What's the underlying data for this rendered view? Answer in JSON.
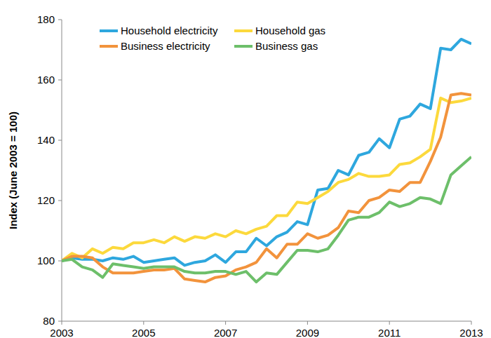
{
  "chart_data": {
    "type": "line",
    "y_label": "Index (June 2003 = 100)",
    "x": [
      2003,
      2003.25,
      2003.5,
      2003.75,
      2004,
      2004.25,
      2004.5,
      2004.75,
      2005,
      2005.25,
      2005.5,
      2005.75,
      2006,
      2006.25,
      2006.5,
      2006.75,
      2007,
      2007.25,
      2007.5,
      2007.75,
      2008,
      2008.25,
      2008.5,
      2008.75,
      2009,
      2009.25,
      2009.5,
      2009.75,
      2010,
      2010.25,
      2010.5,
      2010.75,
      2011,
      2011.25,
      2011.5,
      2011.75,
      2012,
      2012.25,
      2012.5,
      2012.75,
      2013
    ],
    "series": [
      {
        "name": "Household electricity",
        "color": "#2ea7de",
        "values": [
          100,
          101,
          100.5,
          100.5,
          100,
          101,
          100.5,
          101.5,
          99.5,
          100,
          100.5,
          101,
          98.5,
          99.5,
          100,
          102,
          99.5,
          103,
          103,
          107.5,
          105,
          108,
          109.5,
          113,
          112,
          123.5,
          124,
          130,
          128.5,
          135,
          136,
          140.5,
          137.5,
          147,
          148,
          152,
          150.5,
          170.5,
          170,
          173.5,
          172
        ]
      },
      {
        "name": "Household gas",
        "color": "#fcd93c",
        "values": [
          100,
          102.5,
          101,
          104,
          102.5,
          104.5,
          104,
          106,
          106,
          107,
          106,
          108,
          106.5,
          108,
          107.5,
          109,
          108,
          110,
          109,
          110.5,
          111.5,
          115,
          115,
          119.5,
          119,
          121,
          123,
          126,
          127,
          129,
          128,
          128,
          128.5,
          132,
          132.5,
          134.5,
          137,
          154,
          152.5,
          153,
          154
        ]
      },
      {
        "name": "Business electricity",
        "color": "#f2933c",
        "values": [
          100,
          101.5,
          101.5,
          101,
          98,
          96,
          96,
          96,
          96.5,
          97,
          97,
          97.5,
          94,
          93.5,
          93,
          94.5,
          95,
          97,
          98,
          99.5,
          104,
          101,
          105.5,
          105.5,
          109,
          107.5,
          108.5,
          111,
          116.5,
          116,
          120,
          121,
          123.5,
          123,
          126,
          126,
          133,
          141,
          155,
          155.5,
          155
        ]
      },
      {
        "name": "Business gas",
        "color": "#6dbf6a",
        "values": [
          100,
          100.5,
          98,
          97,
          94.5,
          99,
          98.5,
          98,
          97.5,
          98,
          98,
          98,
          96.5,
          96,
          96,
          96.5,
          96.5,
          95.5,
          96.5,
          93,
          96,
          95.5,
          99.5,
          103.5,
          103.5,
          103,
          104,
          108.5,
          113.5,
          114.5,
          114.5,
          116,
          119.5,
          118,
          119,
          121,
          120.5,
          119,
          128.5,
          131.5,
          134.5
        ]
      }
    ],
    "xlim": [
      2003,
      2013
    ],
    "xticks": [
      2003,
      2005,
      2007,
      2009,
      2011,
      2013
    ],
    "ylim": [
      80,
      180
    ],
    "yticks": [
      80,
      100,
      120,
      140,
      160,
      180
    ],
    "grid": false,
    "legend": "upper left"
  }
}
